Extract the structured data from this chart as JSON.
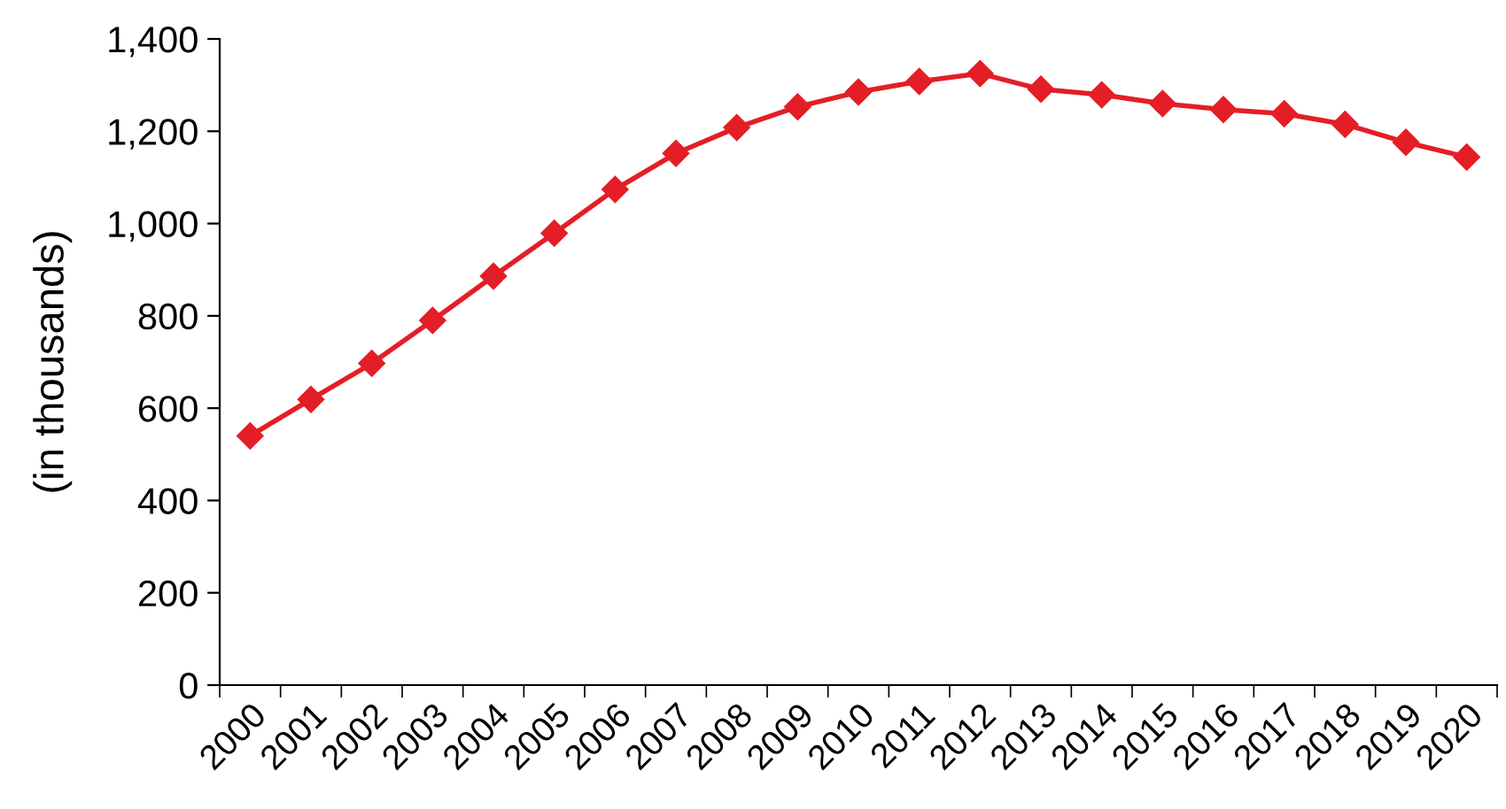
{
  "chart_data": {
    "type": "line",
    "ylabel": "(in thousands)",
    "categories": [
      "2000",
      "2001",
      "2002",
      "2003",
      "2004",
      "2005",
      "2006",
      "2007",
      "2008",
      "2009",
      "2010",
      "2011",
      "2012",
      "2013",
      "2014",
      "2015",
      "2016",
      "2017",
      "2018",
      "2019",
      "2020"
    ],
    "series": [
      {
        "color": "#e41e26",
        "values": [
          540,
          619,
          697,
          790,
          886,
          979,
          1074,
          1152,
          1208,
          1253,
          1285,
          1308,
          1325,
          1291,
          1279,
          1260,
          1247,
          1238,
          1215,
          1176,
          1144
        ]
      }
    ],
    "ylim": [
      0,
      1400
    ],
    "yticks": [
      {
        "value": 0,
        "label": "0"
      },
      {
        "value": 200,
        "label": "200"
      },
      {
        "value": 400,
        "label": "400"
      },
      {
        "value": 600,
        "label": "600"
      },
      {
        "value": 800,
        "label": "800"
      },
      {
        "value": 1000,
        "label": "1,000"
      },
      {
        "value": 1200,
        "label": "1,200"
      },
      {
        "value": 1400,
        "label": "1,400"
      }
    ],
    "marker": "diamond",
    "line_style": "solid",
    "grid": false,
    "legend": false
  }
}
